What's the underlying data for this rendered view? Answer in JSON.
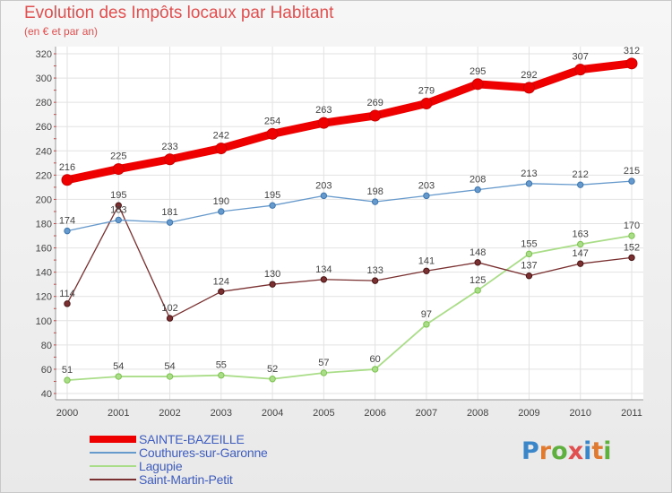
{
  "chart_data": {
    "type": "line",
    "title": "Evolution des Impôts locaux par Habitant",
    "subtitle": "(en € et par an)",
    "x": [
      "2000",
      "2001",
      "2002",
      "2003",
      "2004",
      "2005",
      "2006",
      "2007",
      "2008",
      "2009",
      "2010",
      "2011"
    ],
    "ylim": [
      40,
      320
    ],
    "yticks": [
      40,
      60,
      80,
      100,
      120,
      140,
      160,
      180,
      200,
      220,
      240,
      260,
      280,
      300,
      320
    ],
    "grid": true,
    "series": [
      {
        "name": "SAINTE-BAZEILLE",
        "color": "#ee0000",
        "values": [
          216,
          225,
          233,
          242,
          254,
          263,
          269,
          279,
          295,
          292,
          307,
          312
        ]
      },
      {
        "name": "Couthures-sur-Garonne",
        "color": "#6699cc",
        "values": [
          174,
          183,
          181,
          190,
          195,
          203,
          198,
          203,
          208,
          213,
          212,
          215
        ]
      },
      {
        "name": "Lagupie",
        "color": "#aadd88",
        "values": [
          51,
          54,
          54,
          55,
          52,
          57,
          60,
          97,
          125,
          155,
          163,
          170
        ]
      },
      {
        "name": "Saint-Martin-Petit",
        "color": "#7a3030",
        "values": [
          114,
          195,
          102,
          124,
          130,
          134,
          133,
          141,
          148,
          137,
          147,
          152
        ]
      }
    ]
  },
  "branding": {
    "logo_text": "Proxiti",
    "logo_colors": [
      "#3a86c8",
      "#e07a30",
      "#60b040",
      "#e05050",
      "#3a86c8",
      "#e07a30",
      "#60b040"
    ]
  }
}
